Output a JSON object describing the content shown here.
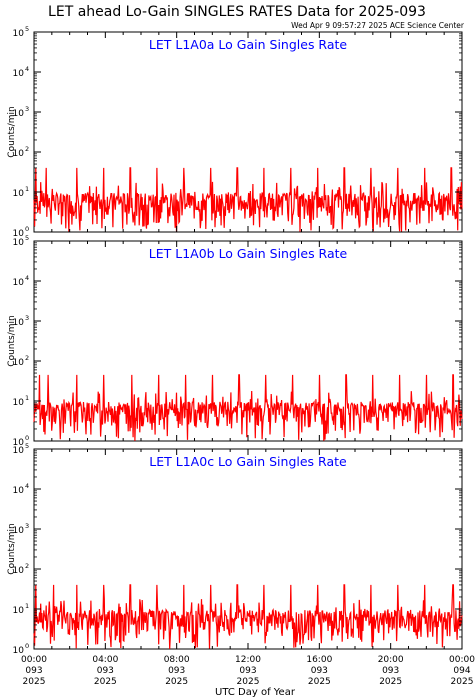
{
  "chart_data": {
    "type": "line",
    "title": "LET ahead Lo-Gain SINGLES RATES Data for 2025-093",
    "subtitle": "Wed Apr  9 09:57:27 2025 ACE Science Center",
    "xlabel": "UTC Day of Year",
    "ylabel": "Counts/min",
    "line_color": "#ff0000",
    "title_color": "#0000ff",
    "y_scale": "log",
    "ylim": [
      1,
      100000
    ],
    "xlim_hours": [
      0,
      24
    ],
    "y_tick_labels": [
      {
        "base": "10",
        "exp": "0"
      },
      {
        "base": "10",
        "exp": "1"
      },
      {
        "base": "10",
        "exp": "2"
      },
      {
        "base": "10",
        "exp": "3"
      },
      {
        "base": "10",
        "exp": "4"
      },
      {
        "base": "10",
        "exp": "5"
      }
    ],
    "x_ticks": [
      {
        "time": "00:00",
        "doy": "093",
        "year": "2025"
      },
      {
        "time": "04:00",
        "doy": "093",
        "year": "2025"
      },
      {
        "time": "08:00",
        "doy": "093",
        "year": "2025"
      },
      {
        "time": "12:00",
        "doy": "093",
        "year": "2025"
      },
      {
        "time": "16:00",
        "doy": "093",
        "year": "2025"
      },
      {
        "time": "20:00",
        "doy": "093",
        "year": "2025"
      },
      {
        "time": "00:00",
        "doy": "094",
        "year": "2025"
      }
    ],
    "panels": [
      {
        "title": "LET L1A0a Lo Gain Singles Rate",
        "baseline_range": [
          1,
          10
        ],
        "spike_hours": [
          0.1,
          0.7,
          2.4,
          3.9,
          5.4,
          6.9,
          8.4,
          9.9,
          11.4,
          12.9,
          14.4,
          15.9,
          17.4,
          18.9,
          20.4,
          21.9,
          23.4
        ],
        "spike_value": 40
      },
      {
        "title": "LET L1A0b Lo Gain Singles Rate",
        "baseline_range": [
          1,
          10
        ],
        "spike_hours": [
          0.3,
          0.8,
          2.4,
          3.9,
          5.5,
          7.0,
          8.5,
          10.0,
          11.5,
          13.0,
          14.5,
          16.0,
          17.5,
          19.0,
          20.5,
          22.0,
          23.5
        ],
        "spike_value": 45
      },
      {
        "title": "LET L1A0c Lo Gain Singles Rate",
        "baseline_range": [
          1,
          10
        ],
        "spike_hours": [
          0.1,
          1.1,
          2.4,
          3.9,
          5.4,
          6.9,
          8.4,
          9.9,
          11.4,
          12.9,
          14.4,
          15.9,
          17.4,
          18.9,
          20.4,
          21.9,
          23.5
        ],
        "spike_value": 40
      }
    ]
  }
}
